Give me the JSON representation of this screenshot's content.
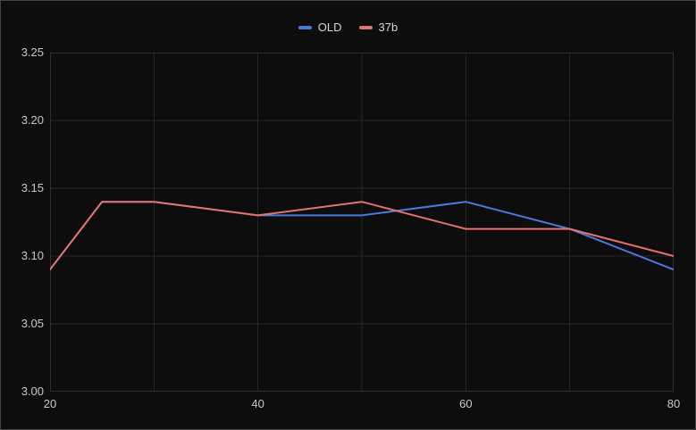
{
  "chart_data": {
    "type": "line",
    "x": [
      20,
      25,
      30,
      40,
      50,
      60,
      70,
      80
    ],
    "series": [
      {
        "name": "OLD",
        "color": "#4a79dd",
        "values": [
          3.09,
          3.14,
          3.14,
          3.13,
          3.13,
          3.14,
          3.12,
          3.09
        ]
      },
      {
        "name": "37b",
        "color": "#e5736b",
        "values": [
          3.09,
          3.14,
          3.14,
          3.13,
          3.14,
          3.12,
          3.12,
          3.1
        ]
      }
    ],
    "title": "",
    "xlabel": "",
    "ylabel": "",
    "xlim": [
      20,
      80
    ],
    "ylim": [
      3.0,
      3.25
    ],
    "x_gridline_values": [
      20,
      30,
      40,
      50,
      60,
      70,
      80
    ],
    "x_tick_values": [
      20,
      40,
      60,
      80
    ],
    "x_tick_labels": [
      "20",
      "40",
      "60",
      "80"
    ],
    "y_tick_values": [
      3.0,
      3.05,
      3.1,
      3.15,
      3.2,
      3.25
    ],
    "y_tick_labels": [
      "3.00",
      "3.05",
      "3.10",
      "3.15",
      "3.20",
      "3.25"
    ],
    "grid": true,
    "legend_position": "top-center",
    "line_width": 2,
    "colors": {
      "plot_background": "#0d0d0e",
      "grid": "#262626",
      "plot_border": "#2f2f2f",
      "tick_label": "#c9c9c9",
      "legend_label": "#d6d6d6",
      "window_border": "#454545"
    }
  }
}
